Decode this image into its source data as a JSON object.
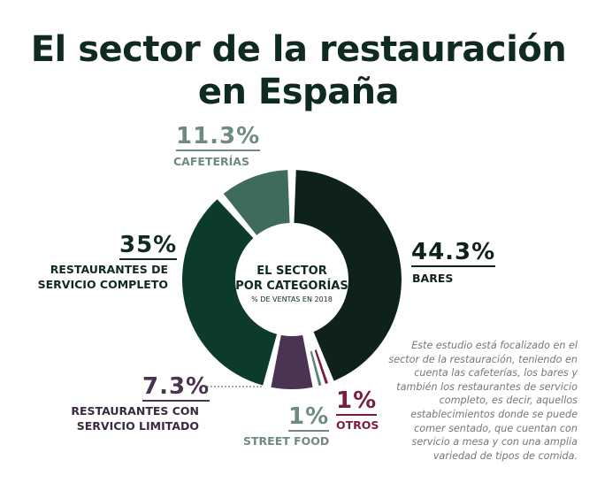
{
  "title": {
    "line1": "El sector de la restauración",
    "line2": "en España"
  },
  "center": {
    "line1": "EL SECTOR",
    "line2": "POR CATEGORÍAS",
    "sub": "% DE VENTAS EN 2018"
  },
  "description": "Este estudio está focalizado en el sector de la restauración, teniendo en cuenta las cafeterías, los bares y también los restaurantes de servicio completo, es decir, aquellos establecimientos donde se puede comer sentado, que cuentan con servicio a mesa y con una amplia variedad de tipos de comida.",
  "chart_data": {
    "type": "pie",
    "title": "EL SECTOR POR CATEGORÍAS",
    "subtitle": "% DE VENTAS EN 2018",
    "unit": "%",
    "slices": [
      {
        "label": "BARES",
        "value": 44.3,
        "display": "44.3%",
        "color": "#0e2219"
      },
      {
        "label": "OTROS",
        "value": 1,
        "display": "1%",
        "color": "#7a1e3c"
      },
      {
        "label": "STREET FOOD",
        "value": 1,
        "display": "1%",
        "color": "#5a8474"
      },
      {
        "label": "RESTAURANTES CON SERVICIO LIMITADO",
        "value": 7.3,
        "display": "7.3%",
        "color": "#4b3352"
      },
      {
        "label": "RESTAURANTES DE SERVICIO COMPLETO",
        "value": 35,
        "display": "35%",
        "color": "#0c3a2d"
      },
      {
        "label": "CAFETERÍAS",
        "value": 11.3,
        "display": "11.3%",
        "color": "#3f6a5e"
      }
    ]
  }
}
